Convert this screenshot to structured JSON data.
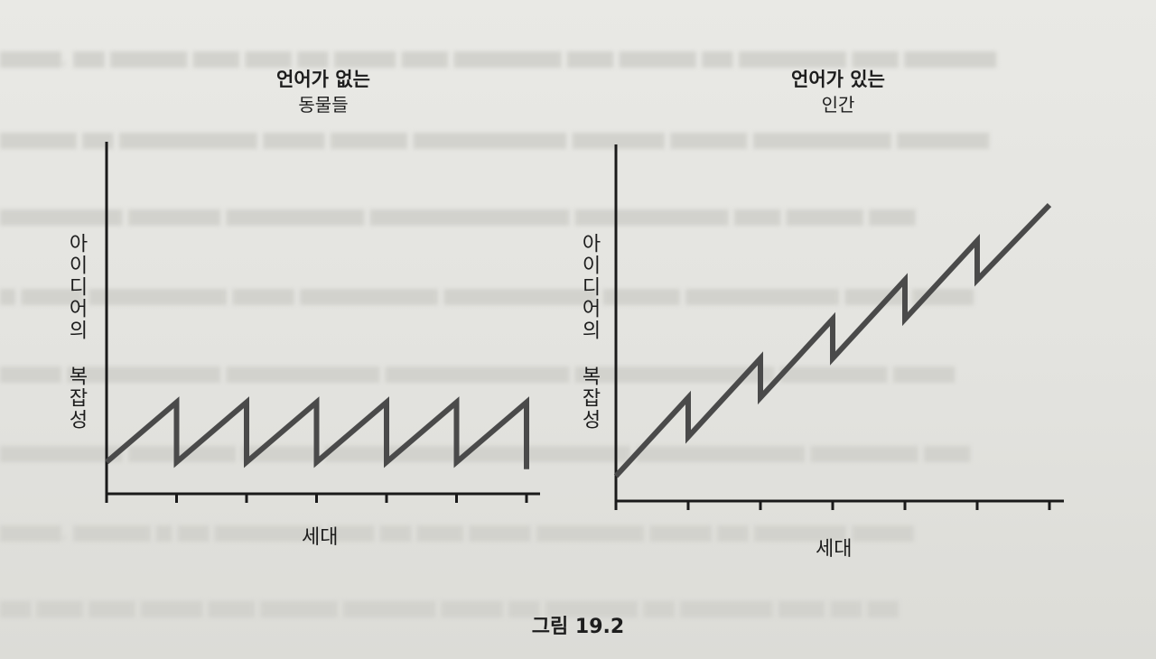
{
  "figure": {
    "caption": "그림 19.2"
  },
  "chart_data": [
    {
      "type": "line",
      "title": "언어가 없는",
      "subtitle": "동물들",
      "xlabel": "세대",
      "ylabel": "아이디어의 복잡성",
      "xlim": [
        0,
        6
      ],
      "ylim": [
        0,
        10
      ],
      "grid": false,
      "x": [
        0,
        1,
        1,
        2,
        2,
        3,
        3,
        4,
        4,
        5,
        5,
        6,
        6
      ],
      "y": [
        0.9,
        2.6,
        0.9,
        2.6,
        0.9,
        2.6,
        0.9,
        2.6,
        0.9,
        2.6,
        0.9,
        2.6,
        0.7
      ]
    },
    {
      "type": "line",
      "title": "언어가 있는",
      "subtitle": "인간",
      "xlabel": "세대",
      "ylabel": "아이디어의 복잡성",
      "xlim": [
        0,
        6
      ],
      "ylim": [
        0,
        10
      ],
      "grid": false,
      "x": [
        0,
        1,
        1,
        2,
        2,
        3,
        3,
        4,
        4,
        5,
        5,
        6
      ],
      "y": [
        0.7,
        2.9,
        1.8,
        4.0,
        2.9,
        5.1,
        4.0,
        6.2,
        5.1,
        7.3,
        6.2,
        8.3
      ]
    }
  ]
}
